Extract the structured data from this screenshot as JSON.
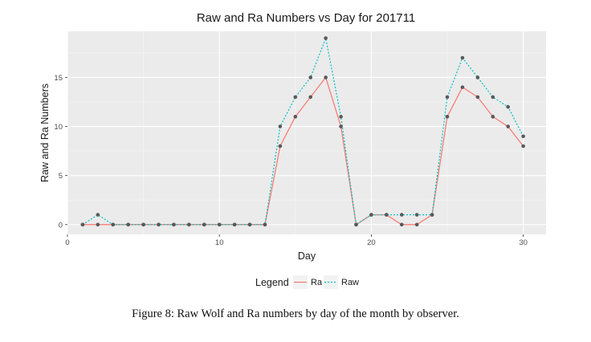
{
  "chart_data": {
    "type": "line",
    "title": "Raw and Ra Numbers vs Day for 201711",
    "xlabel": "Day",
    "ylabel": "Raw and Ra Numbers",
    "xlim": [
      0,
      31.5
    ],
    "ylim": [
      -1,
      19.7
    ],
    "xticks": [
      0,
      10,
      20,
      30
    ],
    "yticks": [
      0,
      5,
      10,
      15
    ],
    "grid": true,
    "legend": {
      "title": "Legend",
      "placement": "bottom"
    },
    "x": [
      1,
      2,
      3,
      4,
      5,
      6,
      7,
      8,
      9,
      10,
      11,
      12,
      13,
      14,
      15,
      16,
      17,
      18,
      19,
      20,
      21,
      22,
      23,
      24,
      25,
      26,
      27,
      28,
      29,
      30
    ],
    "series": [
      {
        "name": "Ra",
        "color": "#F8766D",
        "linestyle": "solid",
        "values": [
          0,
          0,
          0,
          0,
          0,
          0,
          0,
          0,
          0,
          0,
          0,
          0,
          0,
          8,
          11,
          13,
          15,
          10,
          0,
          1,
          1,
          0,
          0,
          1,
          11,
          14,
          13,
          11,
          10,
          8
        ]
      },
      {
        "name": "Raw",
        "color": "#00BFC4",
        "linestyle": "dotted",
        "values": [
          0,
          1,
          0,
          0,
          0,
          0,
          0,
          0,
          0,
          0,
          0,
          0,
          0,
          10,
          13,
          15,
          19,
          11,
          0,
          1,
          1,
          1,
          1,
          1,
          13,
          17,
          15,
          13,
          12,
          9
        ]
      }
    ]
  },
  "caption": "Figure 8: Raw Wolf and Ra numbers by day of the month by observer."
}
